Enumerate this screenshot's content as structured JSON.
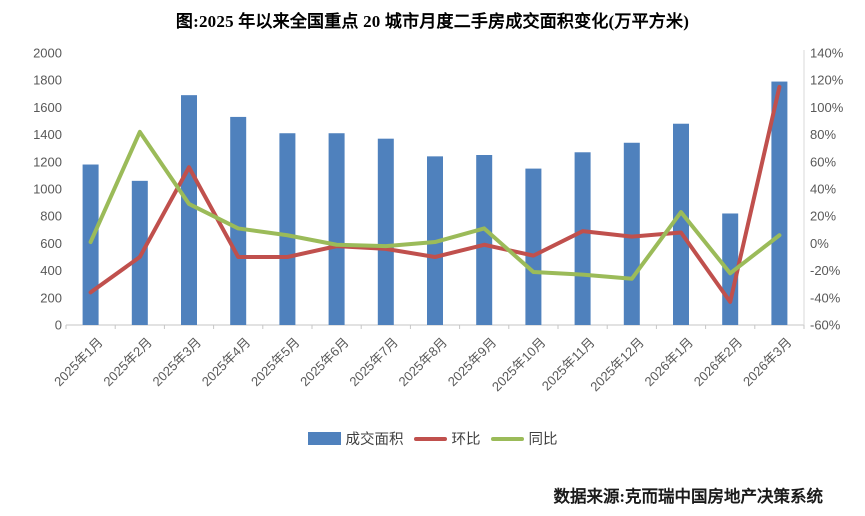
{
  "page": {
    "title": "图:2025 年以来全国重点 20 城市月度二手房成交面积变化(万平方米)",
    "source": "数据来源:克而瑞中国房地产决策系统"
  },
  "legend": [
    {
      "label": "成交面积",
      "color": "#4F81BD",
      "shape": "bar"
    },
    {
      "label": "环比",
      "color": "#C0504D",
      "shape": "line"
    },
    {
      "label": "同比",
      "color": "#9BBB59",
      "shape": "line"
    }
  ],
  "chart_data": {
    "type": "bar+line",
    "title": "图:2025 年以来全国重点 20 城市月度二手房成交面积变化(万平方米)",
    "categories": [
      "2025年1月",
      "2025年2月",
      "2025年3月",
      "2025年4月",
      "2025年5月",
      "2025年6月",
      "2025年7月",
      "2025年8月",
      "2025年9月",
      "2025年10月",
      "2025年11月",
      "2025年12月",
      "2026年1月",
      "2026年2月",
      "2026年3月"
    ],
    "series": [
      {
        "name": "成交面积",
        "type": "bar",
        "y_axis": "left",
        "unit": "万平方米",
        "color": "#4F81BD",
        "values": [
          1180,
          1060,
          1690,
          1530,
          1410,
          1410,
          1370,
          1240,
          1250,
          1150,
          1270,
          1340,
          1480,
          820,
          1790
        ]
      },
      {
        "name": "环比",
        "type": "line",
        "y_axis": "right",
        "unit": "%",
        "color": "#C0504D",
        "values": [
          -36,
          -10,
          56,
          -10,
          -10,
          -2,
          -4,
          -10,
          -1,
          -9,
          9,
          5,
          8,
          -43,
          115
        ]
      },
      {
        "name": "同比",
        "type": "line",
        "y_axis": "right",
        "unit": "%",
        "color": "#9BBB59",
        "values": [
          1,
          82,
          29,
          11,
          6,
          -1,
          -2,
          1,
          11,
          -21,
          -23,
          -26,
          23,
          -22,
          6
        ]
      }
    ],
    "left_axis": {
      "min": 0,
      "max": 2000,
      "step": 200,
      "tick_labels": [
        "0",
        "200",
        "400",
        "600",
        "800",
        "1000",
        "1200",
        "1400",
        "1600",
        "1800",
        "2000"
      ]
    },
    "right_axis": {
      "min": -60,
      "max": 140,
      "step": 20,
      "tick_labels": [
        "-60%",
        "-40%",
        "-20%",
        "0%",
        "20%",
        "40%",
        "60%",
        "80%",
        "100%",
        "120%",
        "140%"
      ]
    },
    "grid": false,
    "legend_position": "bottom"
  }
}
